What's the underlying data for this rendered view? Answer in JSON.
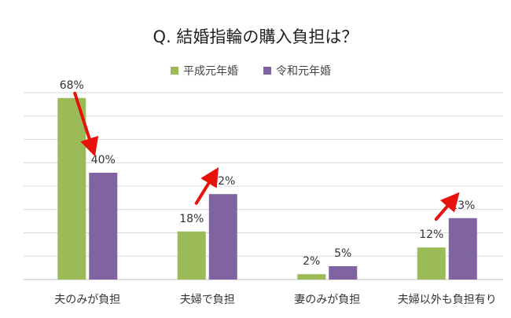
{
  "chart_data": {
    "type": "bar",
    "title": "Q. 結婚指輪の購入負担は？",
    "categories": [
      "夫のみが負担",
      "夫婦で負担",
      "妻のみが負担",
      "夫婦以外も負担有り"
    ],
    "series": [
      {
        "name": "平成元年婚",
        "values": [
          68,
          18,
          2,
          12
        ],
        "labels": [
          "68%",
          "18%",
          "2%",
          "12%"
        ]
      },
      {
        "name": "令和元年婚",
        "values": [
          40,
          32,
          5,
          23
        ],
        "labels": [
          "40%",
          "32%",
          "5%",
          "23%"
        ]
      }
    ],
    "ylim": [
      0,
      70
    ],
    "grid": true,
    "legend": "top-center",
    "colors": {
      "series1": "#9bbb59",
      "series2": "#8064a2",
      "arrow": "#e8120c",
      "grid": "#d9d9d9"
    },
    "annotations": [
      {
        "type": "arrow",
        "category": "夫のみが負担",
        "direction": "down"
      },
      {
        "type": "arrow",
        "category": "夫婦で負担",
        "direction": "up"
      },
      {
        "type": "arrow",
        "category": "夫婦以外も負担有り",
        "direction": "up"
      }
    ]
  }
}
